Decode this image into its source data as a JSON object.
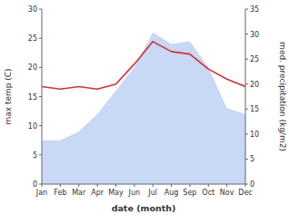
{
  "chart_data": {
    "type": "area",
    "categories": [
      "Jan",
      "Feb",
      "Mar",
      "Apr",
      "May",
      "Jun",
      "Jul",
      "Aug",
      "Sep",
      "Oct",
      "Nov",
      "Dec"
    ],
    "xlabel": "date (month)",
    "ylabel": "max temp (C)",
    "y2label": "med. precipitation (kg/m2)",
    "series": [
      {
        "type": "area",
        "color": "#c8d8f5",
        "values": [
          7.5,
          7.5,
          9.0,
          12.0,
          16.0,
          20.0,
          26.0,
          24.0,
          24.5,
          20.0,
          13.0,
          12.0
        ]
      },
      {
        "type": "line",
        "color": "#cc3333",
        "axis": "y2",
        "values": [
          19.5,
          19.0,
          19.5,
          19.0,
          20.0,
          24.0,
          28.5,
          26.5,
          26.0,
          23.0,
          21.0,
          19.5
        ]
      }
    ],
    "ylim": [
      0,
      30
    ],
    "yticks": [
      0,
      5,
      10,
      15,
      20,
      25,
      30
    ],
    "y2lim": [
      0,
      35
    ],
    "y2ticks": [
      0,
      5,
      10,
      15,
      20,
      25,
      30,
      35
    ],
    "grid": false
  }
}
